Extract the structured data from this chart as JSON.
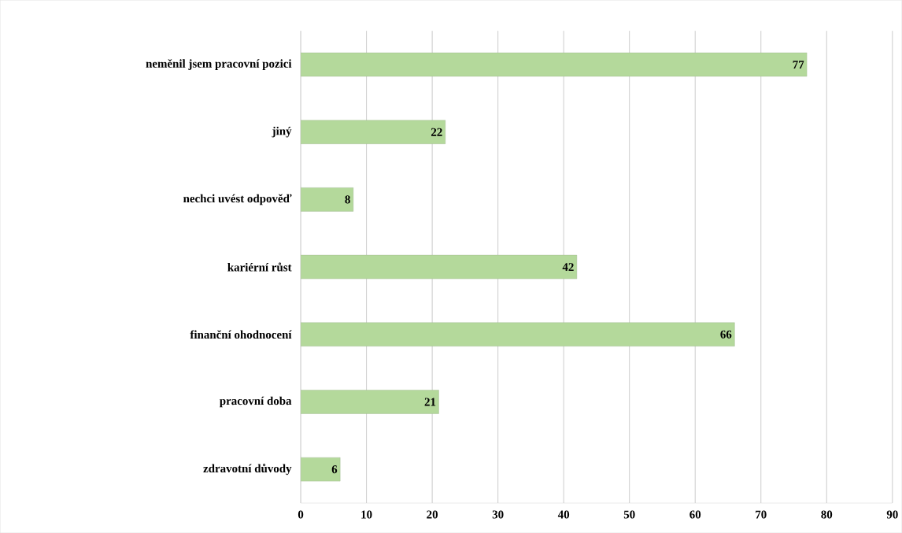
{
  "chart_data": {
    "type": "bar",
    "orientation": "horizontal",
    "categories": [
      "neměnil jsem pracovní pozici",
      "jiný",
      "nechci uvést odpověď",
      "kariérní růst",
      "finanční ohodnocení",
      "pracovní doba",
      "zdravotní důvody"
    ],
    "values": [
      77,
      22,
      8,
      42,
      66,
      21,
      6
    ],
    "color": "#b4d99b",
    "xlim": [
      0,
      90
    ],
    "xticks": [
      0,
      10,
      20,
      30,
      40,
      50,
      60,
      70,
      80,
      90
    ],
    "grid": "x",
    "data_labels": true
  }
}
